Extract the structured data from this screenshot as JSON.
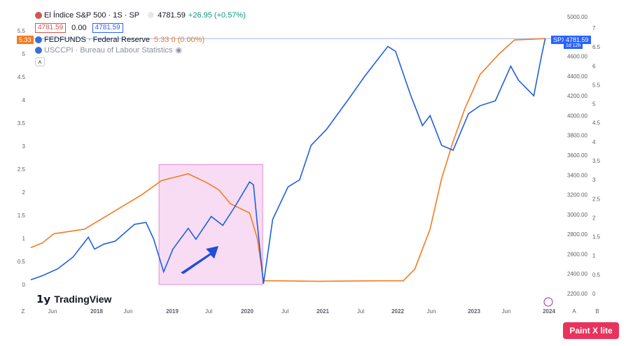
{
  "legend": {
    "spx_title": "El Índice S&P 500 · 1S · SP",
    "spx_price": "4781.59",
    "spx_change": "+26.95 (+0.57%)",
    "spx_box1": "4781.59",
    "spx_zero": "0.00",
    "spx_box2": "4781.59",
    "fed_title": "FEDFUNDS · Federal Reserve",
    "fed_value": "5.33 0 (0.00%)",
    "cpi_title": "USCCPI · Bureau of Labour Statistics"
  },
  "tags": {
    "fed_tag": "5.33",
    "spx_tag_sym": "SPX",
    "spx_tag_val": "4781.59",
    "spx_tag_time": "1d 12h"
  },
  "branding": {
    "logo": "TradingView",
    "watermark": "Paint X lite"
  },
  "colors": {
    "spx": "#1f5fe0",
    "fed": "#f47b20",
    "highlight": "#f8dcf4",
    "highlight_border": "#e58ad6",
    "arrow": "#1f4ed8"
  },
  "chart_data": {
    "type": "line",
    "x_ticks": [
      "Z",
      "Jun",
      "2018",
      "Jun",
      "2019",
      "Jul",
      "2020",
      "Jul",
      "2021",
      "Jul",
      "2022",
      "Jun",
      "2023",
      "Jun",
      "2024",
      "A",
      "B"
    ],
    "left_axis_ticks": [
      "0",
      "0.5",
      "1",
      "1.5",
      "2",
      "2.5",
      "3",
      "3.5",
      "4",
      "4.5",
      "5",
      "5.5"
    ],
    "right_axis_ticks": [
      "2200.00",
      "2400.00",
      "2600.00",
      "2800.00",
      "3000.00",
      "3200.00",
      "3400.00",
      "3600.00",
      "3800.00",
      "4000.00",
      "4200.00",
      "4400.00",
      "4600.00",
      "5000.00"
    ],
    "right_axis2_ticks": [
      "0",
      "0.5",
      "1",
      "1.5",
      "2",
      "2.5",
      "3",
      "3.5",
      "4",
      "4.5",
      "5",
      "5.5",
      "6",
      "6.5",
      "7"
    ],
    "ylim_left": [
      0,
      5.5
    ],
    "ylim_right": [
      2200,
      5000
    ],
    "series": [
      {
        "name": "FEDFUNDS",
        "axis": "left",
        "x": [
          2017.25,
          2017.4,
          2017.55,
          2017.95,
          2018.2,
          2018.45,
          2018.7,
          2018.95,
          2019.3,
          2019.55,
          2019.7,
          2019.85,
          2020.1,
          2020.2,
          2020.28,
          2020.4,
          2021.0,
          2021.8,
          2022.1,
          2022.25,
          2022.45,
          2022.6,
          2022.75,
          2022.9,
          2023.1,
          2023.35,
          2023.55,
          2023.95
        ],
        "values": [
          0.8,
          0.9,
          1.1,
          1.2,
          1.45,
          1.7,
          1.95,
          2.25,
          2.4,
          2.2,
          2.05,
          1.75,
          1.55,
          1.0,
          0.08,
          0.08,
          0.07,
          0.08,
          0.08,
          0.33,
          1.2,
          2.3,
          3.1,
          3.8,
          4.55,
          5.0,
          5.3,
          5.33
        ]
      },
      {
        "name": "SPX",
        "axis": "right",
        "x": [
          2017.25,
          2017.4,
          2017.6,
          2017.8,
          2018.0,
          2018.08,
          2018.2,
          2018.35,
          2018.6,
          2018.75,
          2018.85,
          2018.98,
          2019.1,
          2019.3,
          2019.4,
          2019.6,
          2019.75,
          2019.9,
          2020.1,
          2020.15,
          2020.2,
          2020.28,
          2020.4,
          2020.6,
          2020.75,
          2020.9,
          2021.1,
          2021.4,
          2021.6,
          2021.9,
          2022.0,
          2022.2,
          2022.35,
          2022.45,
          2022.6,
          2022.75,
          2022.95,
          2023.1,
          2023.3,
          2023.5,
          2023.6,
          2023.8,
          2023.9,
          2023.95
        ],
        "values": [
          2340,
          2380,
          2450,
          2570,
          2770,
          2650,
          2700,
          2730,
          2900,
          2920,
          2750,
          2420,
          2650,
          2860,
          2750,
          2980,
          2890,
          3070,
          3330,
          3300,
          2900,
          2300,
          2950,
          3280,
          3350,
          3700,
          3860,
          4180,
          4400,
          4700,
          4650,
          4200,
          3900,
          4000,
          3700,
          3650,
          4020,
          4100,
          4150,
          4500,
          4360,
          4200,
          4600,
          4781.59
        ]
      }
    ],
    "highlight_range": {
      "x_start": 2018.92,
      "x_end": 2020.27,
      "y_top": 2.6,
      "y_bottom": 0
    }
  }
}
